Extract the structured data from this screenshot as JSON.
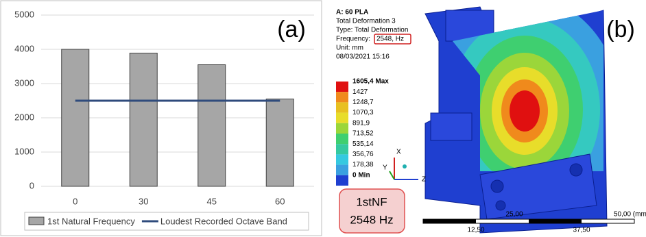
{
  "chart_data": {
    "type": "bar",
    "panel_label": "(a)",
    "categories": [
      "0",
      "30",
      "45",
      "60"
    ],
    "series": [
      {
        "name": "1st Natural Frequency",
        "type": "bar",
        "color": "#a6a6a6",
        "values": [
          4000,
          3890,
          3550,
          2550
        ]
      },
      {
        "name": "Loudest Recorded Octave Band",
        "type": "line",
        "color": "#2f4b7c",
        "values": [
          2500,
          2500,
          2500,
          2500
        ]
      }
    ],
    "ylim": [
      0,
      5000
    ],
    "yticks": [
      0,
      1000,
      2000,
      3000,
      4000,
      5000
    ],
    "grid": true,
    "legend": "bottom"
  },
  "panel_b": {
    "panel_label": "(b)",
    "header": [
      "A: 60 PLA",
      "Total Deformation 3",
      "Type: Total Deformation"
    ],
    "frequency_label": "Frequency:",
    "frequency_value": "2548, Hz",
    "unit": "Unit: mm",
    "timestamp": "08/03/2021 15:16",
    "legend_levels": [
      "1605,4 Max",
      "1427",
      "1248,7",
      "1070,3",
      "891,9",
      "713,52",
      "535,14",
      "356,76",
      "178,38",
      "0 Min"
    ],
    "axes": [
      "X",
      "Y",
      "Z"
    ],
    "callout": [
      "1stNF",
      "2548 Hz"
    ],
    "scale_top": [
      "25,00",
      "50,00 (mm)"
    ],
    "scale_bottom": [
      "12,50",
      "37,50"
    ]
  }
}
